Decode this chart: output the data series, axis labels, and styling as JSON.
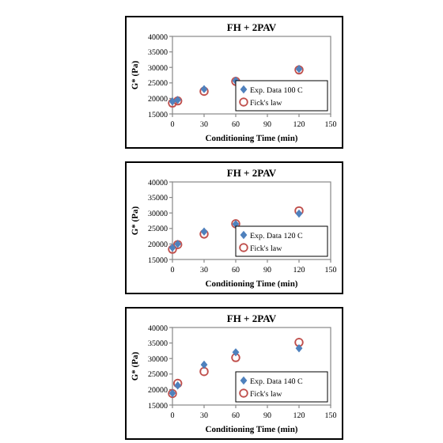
{
  "chart_data": [
    {
      "type": "scatter",
      "title": "FH + 2PAV",
      "xlabel": "Conditioning Time (min)",
      "ylabel": "G* (Pa)",
      "xlim": [
        0,
        150
      ],
      "xticks": [
        0,
        30,
        60,
        90,
        120,
        150
      ],
      "ylim": [
        15000,
        40000
      ],
      "yticks": [
        15000,
        20000,
        25000,
        30000,
        35000,
        40000
      ],
      "legend": "bottom right",
      "series": [
        {
          "name": "Exp. Data 100 C",
          "color": "#4f81bd",
          "marker": "diamond",
          "x": [
            0,
            5,
            30,
            60,
            120
          ],
          "values": [
            19000,
            19500,
            23000,
            25700,
            29500
          ]
        },
        {
          "name": "Fick's law",
          "color": "#c0504d",
          "marker": "circle",
          "x": [
            0,
            5,
            30,
            60,
            120
          ],
          "values": [
            18500,
            19200,
            22300,
            25500,
            29200
          ]
        }
      ]
    },
    {
      "type": "scatter",
      "title": "FH + 2PAV",
      "xlabel": "Conditioning Time (min)",
      "ylabel": "G* (Pa)",
      "xlim": [
        0,
        150
      ],
      "xticks": [
        0,
        30,
        60,
        90,
        120,
        150
      ],
      "ylim": [
        15000,
        40000
      ],
      "yticks": [
        15000,
        20000,
        25000,
        30000,
        35000,
        40000
      ],
      "legend": "bottom right",
      "series": [
        {
          "name": "Exp. Data 120 C",
          "color": "#4f81bd",
          "marker": "diamond",
          "x": [
            0,
            5,
            30,
            60,
            120
          ],
          "values": [
            18800,
            20000,
            24000,
            26400,
            29800
          ]
        },
        {
          "name": "Fick's law",
          "color": "#c0504d",
          "marker": "circle",
          "x": [
            0,
            5,
            30,
            60,
            120
          ],
          "values": [
            18300,
            19800,
            23200,
            26500,
            30700
          ]
        }
      ]
    },
    {
      "type": "scatter",
      "title": "FH + 2PAV",
      "xlabel": "Conditioning Time (min)",
      "ylabel": "G* (Pa)",
      "xlim": [
        0,
        150
      ],
      "xticks": [
        0,
        30,
        60,
        90,
        120,
        150
      ],
      "ylim": [
        15000,
        40000
      ],
      "yticks": [
        15000,
        20000,
        25000,
        30000,
        35000,
        40000
      ],
      "legend": "bottom right",
      "series": [
        {
          "name": "Exp. Data 140 C",
          "color": "#4f81bd",
          "marker": "diamond",
          "x": [
            0,
            5,
            30,
            60,
            120
          ],
          "values": [
            18800,
            21300,
            28000,
            32000,
            33300
          ]
        },
        {
          "name": "Fick's law",
          "color": "#c0504d",
          "marker": "circle",
          "x": [
            0,
            5,
            30,
            60,
            120
          ],
          "values": [
            18700,
            22000,
            25800,
            30300,
            35200
          ]
        }
      ]
    }
  ]
}
